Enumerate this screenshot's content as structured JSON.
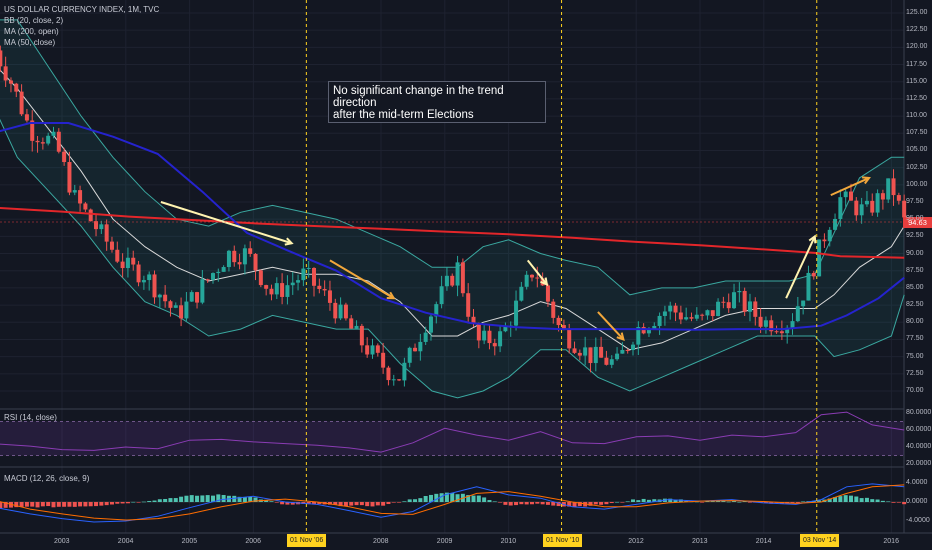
{
  "legend": {
    "symbol": "US DOLLAR CURRENCY INDEX, 1M, TVC",
    "bb": "BB (20, close, 2)",
    "ma200": "MA (200, open)",
    "ma50": "MA (50, close)",
    "rsi": "RSI (14, close)",
    "macd": "MACD (12, 26, close, 9)"
  },
  "annotation": "No significant change in the trend\ndirection\nafter the mid-term Elections",
  "events": [
    {
      "label": "01 Nov '06",
      "x": 2006.83
    },
    {
      "label": "01 Nov '10",
      "x": 2010.83
    },
    {
      "label": "03 Nov '14",
      "x": 2014.83
    }
  ],
  "last_price": "94.63",
  "colors": {
    "background": "#131722",
    "bull": "#26a69a",
    "bear": "#ef5350",
    "ma200": "#e3262a",
    "ma50": "#2523ce",
    "bb": "#3aa8a0",
    "event_line": "#ffd21f",
    "rsi": "#8a3cb4"
  },
  "chart_data": [
    {
      "type": "candlestick",
      "title": "US DOLLAR CURRENCY INDEX, 1M, TVC",
      "y_ticks": [
        125.0,
        122.5,
        120.0,
        117.5,
        115.0,
        112.5,
        110.0,
        107.5,
        105.0,
        102.5,
        100.0,
        97.5,
        95.0,
        92.5,
        90.0,
        87.5,
        85.0,
        82.5,
        80.0,
        77.5,
        75.0,
        72.5,
        70.0
      ],
      "x_ticks": [
        "2003",
        "2004",
        "2005",
        "2006",
        "2008",
        "2009",
        "2010",
        "2012",
        "2013",
        "2014",
        "2016"
      ],
      "ylim": [
        68.5,
        126
      ],
      "close_path_x": [
        2001.9,
        2002.2,
        2002.5,
        2002.9,
        2003.2,
        2003.6,
        2004.0,
        2004.3,
        2004.8,
        2005.1,
        2005.6,
        2005.9,
        2006.3,
        2006.8,
        2007.2,
        2007.7,
        2008.1,
        2008.3,
        2008.7,
        2009.2,
        2009.5,
        2009.9,
        2010.4,
        2010.8,
        2011.3,
        2011.7,
        2012.0,
        2012.5,
        2013.0,
        2013.5,
        2014.0,
        2014.4,
        2014.7,
        2015.0,
        2015.2,
        2015.6,
        2016.0,
        2016.2
      ],
      "close_path_y": [
        120.5,
        115,
        108,
        106,
        98,
        93,
        88,
        87,
        81,
        84,
        90,
        90,
        84,
        87,
        83,
        77,
        73,
        72,
        80,
        88,
        77,
        78,
        88,
        79,
        75,
        74,
        79,
        82,
        80,
        84,
        80,
        80,
        86,
        94,
        98,
        96,
        100,
        94.6
      ],
      "ma200_x": [
        2001.9,
        2003.0,
        2004.0,
        2005.0,
        2006.0,
        2007.0,
        2008.0,
        2009.0,
        2010.0,
        2011.0,
        2012.0,
        2013.0,
        2014.0,
        2014.8,
        2015.2,
        2016.2
      ],
      "ma200_y": [
        96.7,
        96.1,
        95.4,
        94.9,
        94.4,
        94.0,
        93.6,
        93.2,
        92.8,
        92.3,
        91.7,
        91.2,
        90.6,
        90.1,
        89.6,
        89.4
      ],
      "ma50_x": [
        2001.9,
        2002.5,
        2003.1,
        2003.8,
        2004.5,
        2005.2,
        2005.9,
        2006.6,
        2007.3,
        2008.0,
        2008.7,
        2009.4,
        2010.1,
        2010.8,
        2011.5,
        2012.2,
        2012.9,
        2013.6,
        2014.3,
        2014.9,
        2015.3,
        2015.8,
        2016.2
      ],
      "ma50_y": [
        107.5,
        109,
        109,
        107,
        104.5,
        99,
        93,
        90.2,
        87.5,
        83.5,
        81.4,
        79.9,
        79.3,
        79,
        79,
        79,
        78.9,
        79,
        79,
        79.5,
        81,
        83.5,
        86.5
      ],
      "bb_mid_x": [
        2001.9,
        2002.3,
        2002.8,
        2003.3,
        2003.8,
        2004.3,
        2004.8,
        2005.3,
        2005.8,
        2006.3,
        2006.8,
        2007.3,
        2007.8,
        2008.3,
        2008.8,
        2009.2,
        2009.6,
        2010.0,
        2010.5,
        2010.9,
        2011.4,
        2011.9,
        2012.4,
        2012.9,
        2013.4,
        2013.9,
        2014.4,
        2014.8,
        2015.1,
        2015.5,
        2016.0,
        2016.2
      ],
      "bb_mid_y": [
        118,
        114,
        108,
        102,
        95,
        91,
        88,
        86,
        87,
        88,
        87,
        87,
        86,
        83,
        78,
        78,
        80,
        81,
        83,
        82,
        79,
        76,
        77,
        79,
        81,
        82,
        82,
        82,
        84,
        88,
        91,
        94
      ],
      "bb_upper_y": [
        124,
        124,
        117,
        110,
        104,
        99,
        95,
        94,
        96,
        97,
        96,
        95,
        93,
        91,
        88,
        88,
        91,
        92,
        90,
        89,
        88,
        84,
        85,
        85,
        86,
        86,
        86,
        87,
        93,
        101,
        104,
        104
      ],
      "bb_lower_y": [
        112,
        104,
        99,
        94,
        88,
        83,
        81,
        78,
        79,
        81,
        80,
        79,
        79,
        74,
        70,
        69,
        70,
        72,
        76,
        76,
        72,
        70,
        72,
        74,
        76,
        78,
        78,
        78,
        75,
        76,
        78,
        84
      ]
    },
    {
      "type": "line",
      "title": "RSI (14, close)",
      "y_ticks": [
        80.0,
        60.0,
        40.0,
        20.0
      ],
      "ylim": [
        20,
        80
      ],
      "x": [
        2001.9,
        2002.5,
        2003.0,
        2003.5,
        2004.0,
        2004.5,
        2005.0,
        2005.5,
        2006.0,
        2006.5,
        2007.0,
        2007.5,
        2008.0,
        2008.5,
        2009.0,
        2009.5,
        2010.0,
        2010.5,
        2011.0,
        2011.5,
        2012.0,
        2012.5,
        2013.0,
        2013.5,
        2014.0,
        2014.5,
        2014.9,
        2015.3,
        2015.7,
        2016.2
      ],
      "values": [
        44,
        41,
        37,
        36,
        40,
        38,
        48,
        49,
        46,
        44,
        42,
        39,
        34,
        45,
        62,
        54,
        48,
        58,
        45,
        44,
        52,
        53,
        48,
        54,
        52,
        57,
        78,
        81,
        66,
        60
      ]
    },
    {
      "type": "bar",
      "title": "MACD (12, 26, close, 9)",
      "y_ticks": [
        4.0,
        0.0,
        -4.0
      ],
      "ylim": [
        -5.5,
        5
      ],
      "x": [
        2001.9,
        2002.5,
        2003.0,
        2003.5,
        2004.0,
        2004.5,
        2005.0,
        2005.5,
        2006.0,
        2006.5,
        2007.0,
        2007.5,
        2008.0,
        2008.5,
        2009.0,
        2009.5,
        2010.0,
        2010.5,
        2011.0,
        2011.5,
        2012.0,
        2012.5,
        2013.0,
        2013.5,
        2014.0,
        2014.5,
        2014.9,
        2015.3,
        2015.7,
        2016.2
      ],
      "macd": [
        -1,
        -2.5,
        -3.5,
        -4.2,
        -4,
        -3,
        -1.2,
        0.5,
        1.2,
        0,
        -0.5,
        -1.8,
        -3.2,
        -2,
        1.5,
        3.2,
        1.5,
        0.8,
        -1,
        -1.5,
        -0.5,
        0.5,
        0.2,
        0.5,
        -0.2,
        -0.5,
        0.5,
        3.2,
        3.8,
        3.2
      ],
      "signal": [
        0.5,
        -1.5,
        -2.5,
        -3.4,
        -3.8,
        -3.5,
        -2.5,
        -1,
        0.2,
        0.6,
        0,
        -1,
        -2.4,
        -2.6,
        -0.5,
        1.8,
        2.2,
        1.2,
        0,
        -1,
        -1,
        -0.2,
        0.2,
        0.3,
        0.1,
        -0.3,
        0,
        1.8,
        3.2,
        3.6
      ],
      "histogram": [
        -1.5,
        -1,
        -1,
        -0.8,
        -0.2,
        0.5,
        1.3,
        1.5,
        1,
        -0.6,
        -0.5,
        -0.8,
        -0.8,
        0.6,
        2,
        1.4,
        -0.7,
        -0.4,
        -1,
        -0.5,
        0.5,
        0.7,
        0,
        0.2,
        -0.3,
        -0.2,
        0.5,
        1.4,
        0.6,
        -0.4
      ]
    }
  ]
}
